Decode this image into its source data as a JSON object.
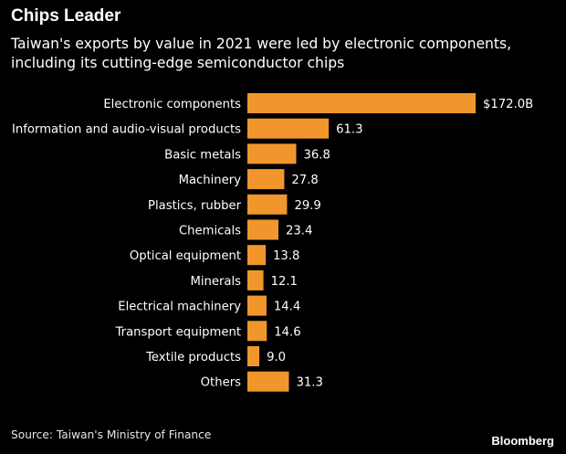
{
  "title": "Chips Leader",
  "subtitle": "Taiwan's exports by value in 2021 were led by electronic components, including its cutting-edge semiconductor chips",
  "source": "Source: Taiwan's Ministry of Finance",
  "brand": "Bloomberg",
  "colors": {
    "background": "#000000",
    "bar": "#f0962c",
    "text": "#ffffff"
  },
  "chart_data": {
    "type": "bar",
    "orientation": "horizontal",
    "title": "Chips Leader",
    "subtitle": "Taiwan's exports by value in 2021 were led by electronic components, including its cutting-edge semiconductor chips",
    "xlabel": "",
    "ylabel": "",
    "unit": "US$ billions",
    "categories": [
      "Electronic components",
      "Information and audio-visual products",
      "Basic metals",
      "Machinery",
      "Plastics, rubber",
      "Chemicals",
      "Optical equipment",
      "Minerals",
      "Electrical machinery",
      "Transport equipment",
      "Textile products",
      "Others"
    ],
    "values": [
      172.0,
      61.3,
      36.8,
      27.8,
      29.9,
      23.4,
      13.8,
      12.1,
      14.4,
      14.6,
      9.0,
      31.3
    ],
    "data_labels": [
      "$172.0B",
      "61.3",
      "36.8",
      "27.8",
      "29.9",
      "23.4",
      "13.8",
      "12.1",
      "14.4",
      "14.6",
      "9.0",
      "31.3"
    ],
    "xlim": [
      0,
      172.0
    ],
    "grid": false,
    "legend": "none"
  }
}
